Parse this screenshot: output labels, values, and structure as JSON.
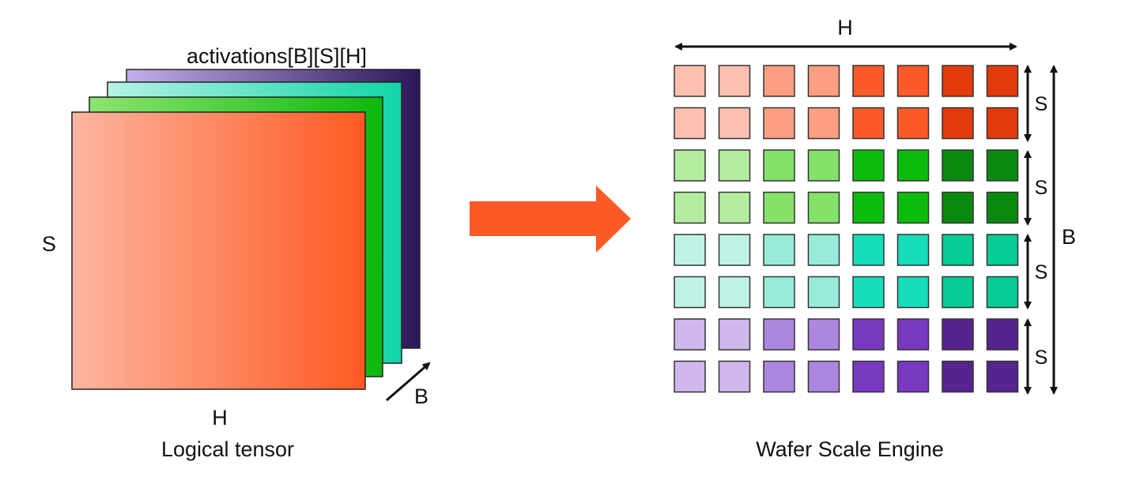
{
  "left_panel": {
    "tensor_label": "activations[B][S][H]",
    "axis_s": "S",
    "axis_h": "H",
    "axis_b": "B",
    "caption": "Logical tensor",
    "layers": [
      {
        "name": "purple",
        "start": "#c2b0ea",
        "end": "#2b165a"
      },
      {
        "name": "teal",
        "start": "#b6f2e4",
        "end": "#12d4a8"
      },
      {
        "name": "green",
        "start": "#8ee472",
        "end": "#0cb80c"
      },
      {
        "name": "orange",
        "start": "#fdb5a0",
        "end": "#fe5a22"
      }
    ]
  },
  "arrow": {
    "color": "#fc5a26"
  },
  "right_panel": {
    "axis_h": "H",
    "axis_b": "B",
    "axis_s": "S",
    "caption": "Wafer Scale Engine",
    "grid_rows": [
      [
        "#fcc0b0",
        "#fcc0b0",
        "#fc9e82",
        "#fc9e82",
        "#fc5a28",
        "#fc5a28",
        "#e23a0a",
        "#e23a0a"
      ],
      [
        "#fcc0b0",
        "#fcc0b0",
        "#fc9e82",
        "#fc9e82",
        "#fc5a28",
        "#fc5a28",
        "#e23a0a",
        "#e23a0a"
      ],
      [
        "#b4eca0",
        "#b4eca0",
        "#84e26a",
        "#84e26a",
        "#0cbc0c",
        "#0cbc0c",
        "#098a0e",
        "#098a0e"
      ],
      [
        "#b4eca0",
        "#b4eca0",
        "#84e26a",
        "#84e26a",
        "#0cbc0c",
        "#0cbc0c",
        "#098a0e",
        "#098a0e"
      ],
      [
        "#c0f2e6",
        "#c0f2e6",
        "#96ecd8",
        "#96ecd8",
        "#16deba",
        "#16deba",
        "#06cc98",
        "#06cc98"
      ],
      [
        "#c0f2e6",
        "#c0f2e6",
        "#96ecd8",
        "#96ecd8",
        "#16deba",
        "#16deba",
        "#06cc98",
        "#06cc98"
      ],
      [
        "#d0b8ec",
        "#d0b8ec",
        "#ac86e0",
        "#ac86e0",
        "#7838c0",
        "#7838c0",
        "#56248e",
        "#56248e"
      ],
      [
        "#d0b8ec",
        "#d0b8ec",
        "#ac86e0",
        "#ac86e0",
        "#7838c0",
        "#7838c0",
        "#56248e",
        "#56248e"
      ]
    ]
  }
}
